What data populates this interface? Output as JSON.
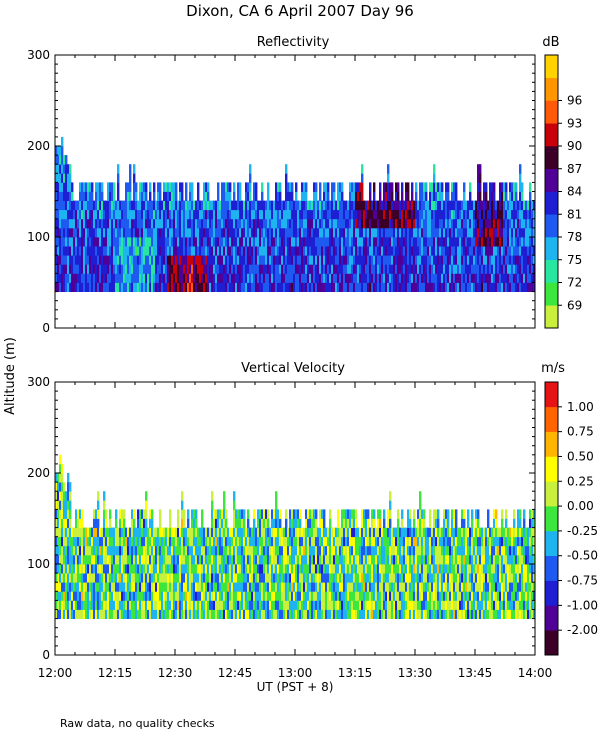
{
  "title": "Dixon, CA   6 April 2007   Day  96",
  "footnote": "Raw data, no quality checks",
  "shared_axes": {
    "ylabel": "Altitude  (m)",
    "xlabel": "UT   (PST + 8)",
    "x_tick_labels": [
      "12:00",
      "12:15",
      "12:30",
      "12:45",
      "13:00",
      "13:15",
      "13:30",
      "13:45",
      "14:00"
    ],
    "y_tick_labels": [
      "0",
      "100",
      "200",
      "300"
    ]
  },
  "chart_data": [
    {
      "type": "heatmap",
      "title": "Reflectivity",
      "colorbar_unit": "dB",
      "colorbar_ticks": [
        "69",
        "72",
        "75",
        "78",
        "81",
        "84",
        "87",
        "90",
        "93",
        "96"
      ],
      "colorbar_colors": [
        "#c8f03c",
        "#3ce63c",
        "#28e6a0",
        "#1eb4f0",
        "#1e5af0",
        "#1e1ed2",
        "#500096",
        "#3c0028",
        "#c8000a",
        "#ff5a0a",
        "#ff9600",
        "#ffd200"
      ],
      "xlim_minutes": [
        0,
        120
      ],
      "ylim": [
        0,
        300
      ],
      "data_base_m": 40
    },
    {
      "type": "heatmap",
      "title": "Vertical Velocity",
      "colorbar_unit": "m/s",
      "colorbar_ticks": [
        "-2.00",
        "-1.00",
        "-0.75",
        "-0.50",
        "-0.25",
        "0.00",
        "0.25",
        "0.50",
        "0.75",
        "1.00"
      ],
      "colorbar_colors": [
        "#3c0028",
        "#500096",
        "#1e1ed2",
        "#1e5af0",
        "#1eb4f0",
        "#3ce63c",
        "#c8f03c",
        "#ffff00",
        "#ffb400",
        "#ff6400",
        "#e61414"
      ],
      "xlim_minutes": [
        0,
        120
      ],
      "ylim": [
        0,
        300
      ],
      "data_base_m": 40
    }
  ]
}
